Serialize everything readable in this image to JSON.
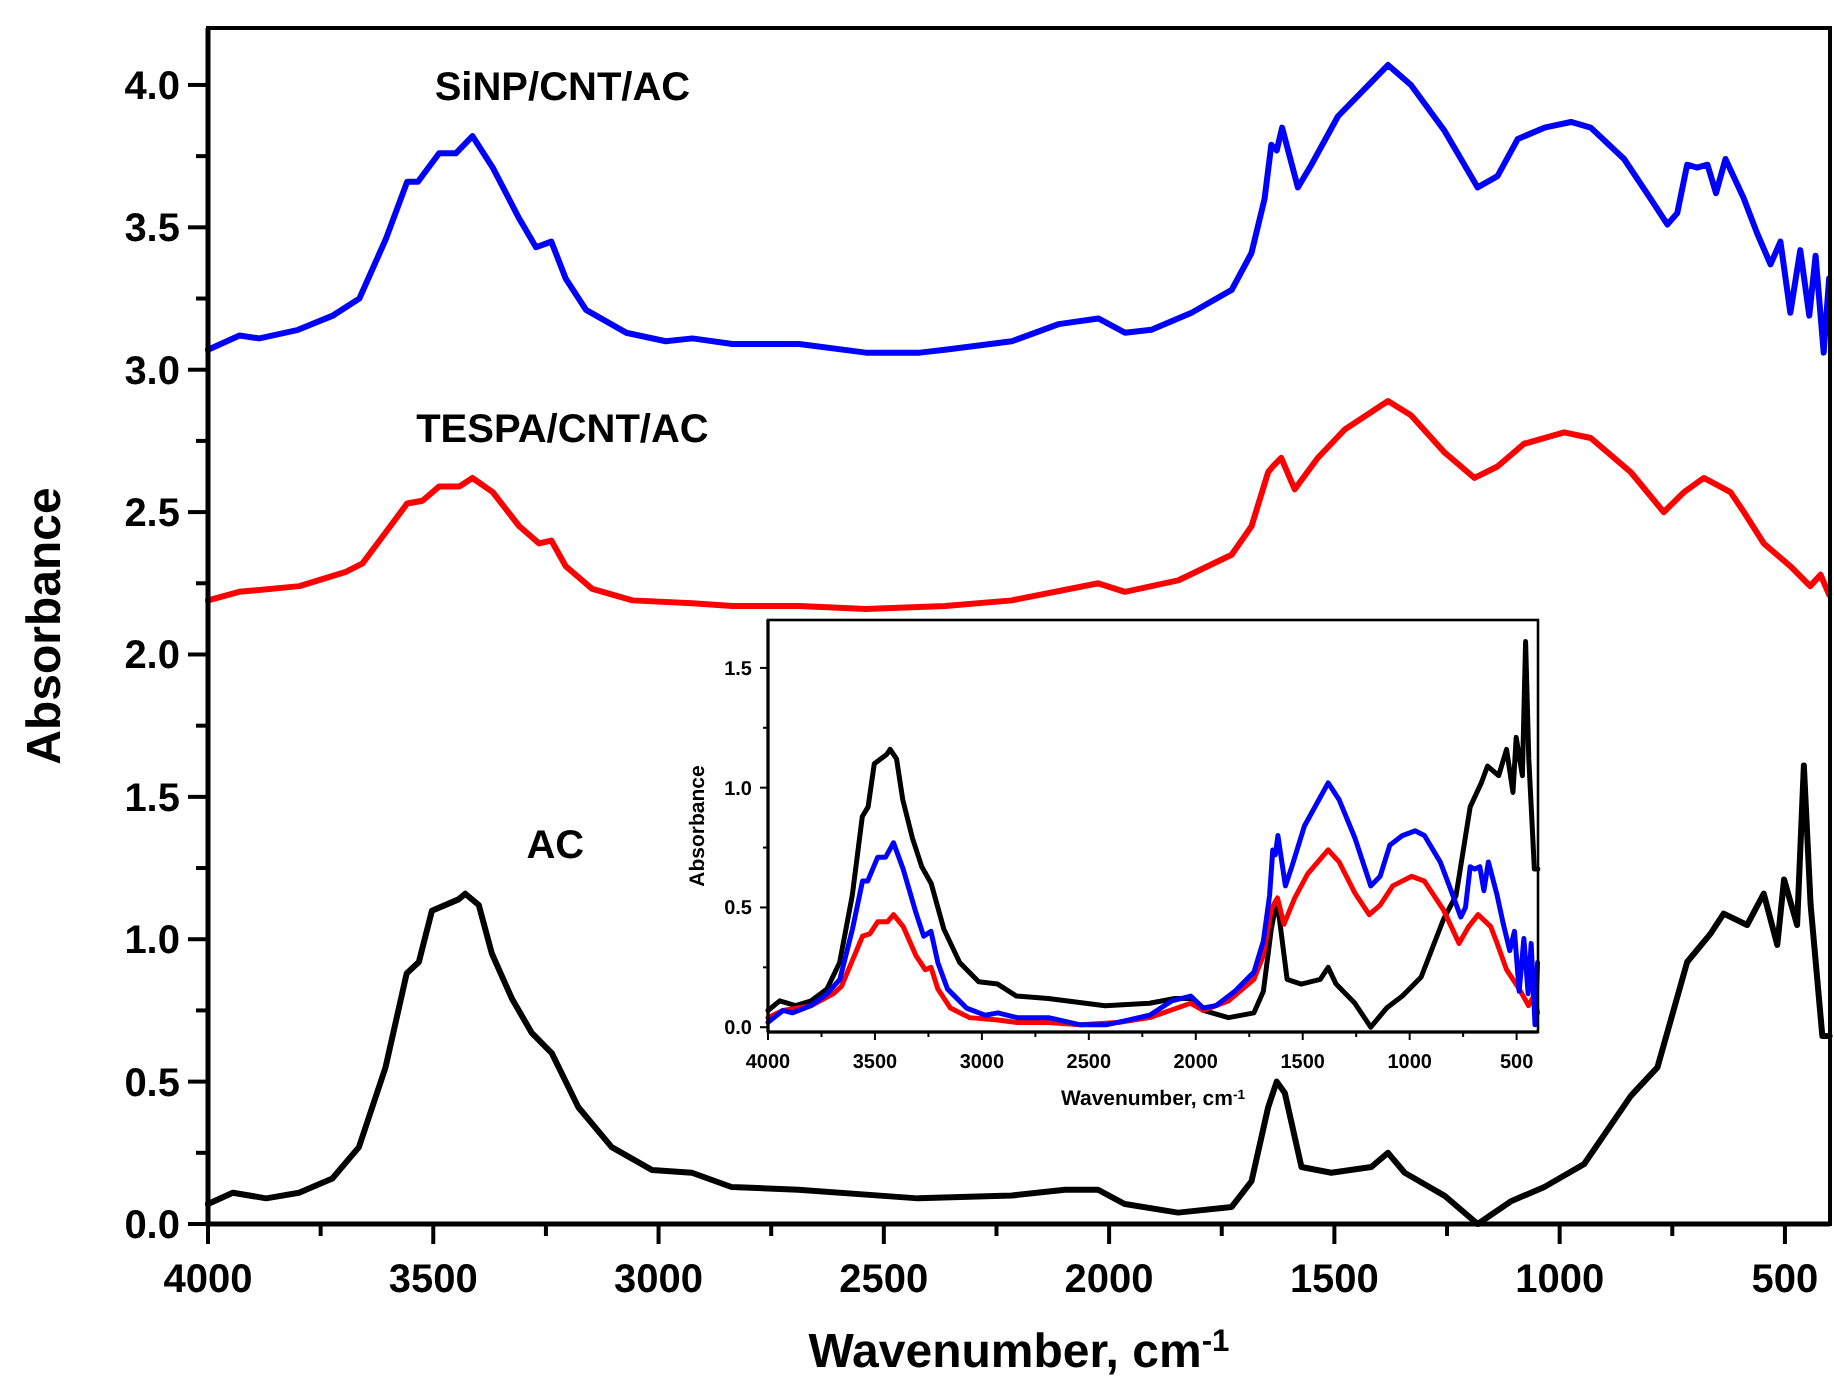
{
  "chart_data": [
    {
      "type": "line",
      "xlabel": "Wavenumber, cm$^{-1}$",
      "ylabel": "Absorbance",
      "xlim": [
        4000,
        400
      ],
      "ylim": [
        0,
        4.2
      ],
      "xticks": [
        4000,
        {
          "value": 3750,
          "label": null
        },
        3500,
        {
          "value": 3250,
          "label": null
        },
        3000,
        {
          "value": 2750,
          "label": null
        },
        2500,
        {
          "value": 2250,
          "label": null
        },
        2000,
        {
          "value": 1750,
          "label": null
        },
        1500,
        {
          "value": 1250,
          "label": null
        },
        1000,
        {
          "value": 750,
          "label": null
        },
        500
      ],
      "yticks": [
        {
          "value": 0,
          "label": "0.0"
        },
        {
          "value": 0.25,
          "label": null
        },
        {
          "value": 0.5,
          "label": "0.5"
        },
        {
          "value": 0.75,
          "label": null
        },
        {
          "value": 1,
          "label": "1.0"
        },
        {
          "value": 1.25,
          "label": null
        },
        {
          "value": 1.5,
          "label": "1.5"
        },
        {
          "value": 1.75,
          "label": null
        },
        {
          "value": 2,
          "label": "2.0"
        },
        {
          "value": 2.25,
          "label": null
        },
        {
          "value": 2.5,
          "label": "2.5"
        },
        {
          "value": 2.75,
          "label": null
        },
        {
          "value": 3,
          "label": "3.0"
        },
        {
          "value": 3.25,
          "label": null
        },
        {
          "value": 3.5,
          "label": "3.5"
        },
        {
          "value": 3.75,
          "label": null
        },
        {
          "value": 4,
          "label": "4.0"
        }
      ],
      "series": [
        {
          "name": "SiNP/CNT/AC",
          "color": "#0000ff",
          "x": [
            4000,
            3930,
            3886,
            3800,
            3723,
            3664,
            3605,
            3558,
            3534,
            3487,
            3450,
            3413,
            3368,
            3309,
            3272,
            3238,
            3206,
            3161,
            3072,
            2984,
            2925,
            2836,
            2688,
            2540,
            2420,
            2364,
            2216,
            2112,
            2024,
            1965,
            1906,
            1817,
            1728,
            1684,
            1655,
            1640,
            1628,
            1616,
            1581,
            1551,
            1492,
            1418,
            1381,
            1330,
            1256,
            1182,
            1138,
            1093,
            1034,
            975,
            931,
            857,
            798,
            761,
            739,
            717,
            695,
            672,
            653,
            632,
            591,
            562,
            532,
            510,
            488,
            466,
            446,
            432,
            414,
            402
          ],
          "values": [
            3.07,
            3.12,
            3.11,
            3.14,
            3.19,
            3.25,
            3.46,
            3.66,
            3.66,
            3.76,
            3.76,
            3.82,
            3.71,
            3.53,
            3.43,
            3.45,
            3.32,
            3.21,
            3.13,
            3.1,
            3.11,
            3.09,
            3.09,
            3.06,
            3.06,
            3.07,
            3.1,
            3.16,
            3.18,
            3.13,
            3.14,
            3.2,
            3.28,
            3.41,
            3.6,
            3.79,
            3.77,
            3.85,
            3.64,
            3.72,
            3.89,
            4.01,
            4.07,
            4.0,
            3.84,
            3.64,
            3.68,
            3.81,
            3.85,
            3.87,
            3.85,
            3.74,
            3.6,
            3.51,
            3.55,
            3.72,
            3.71,
            3.72,
            3.62,
            3.74,
            3.6,
            3.48,
            3.37,
            3.45,
            3.2,
            3.42,
            3.19,
            3.4,
            3.06,
            3.32
          ]
        },
        {
          "name": "TESPA/CNT/AC",
          "color": "#ff0000",
          "x": [
            4000,
            3931,
            3797,
            3694,
            3657,
            3605,
            3558,
            3524,
            3487,
            3442,
            3413,
            3368,
            3309,
            3265,
            3238,
            3206,
            3147,
            3058,
            2925,
            2836,
            2688,
            2540,
            2364,
            2216,
            2024,
            1965,
            1847,
            1728,
            1684,
            1647,
            1637,
            1618,
            1588,
            1537,
            1477,
            1381,
            1330,
            1256,
            1189,
            1138,
            1079,
            990,
            931,
            842,
            769,
            724,
            680,
            621,
            591,
            547,
            488,
            444,
            421,
            402
          ],
          "values": [
            2.19,
            2.22,
            2.24,
            2.29,
            2.32,
            2.43,
            2.53,
            2.54,
            2.59,
            2.59,
            2.62,
            2.57,
            2.45,
            2.39,
            2.4,
            2.31,
            2.23,
            2.19,
            2.18,
            2.17,
            2.17,
            2.16,
            2.17,
            2.19,
            2.25,
            2.22,
            2.26,
            2.35,
            2.45,
            2.64,
            2.66,
            2.69,
            2.58,
            2.69,
            2.79,
            2.89,
            2.84,
            2.71,
            2.62,
            2.66,
            2.74,
            2.78,
            2.76,
            2.64,
            2.5,
            2.57,
            2.62,
            2.57,
            2.5,
            2.39,
            2.31,
            2.24,
            2.28,
            2.21
          ]
        },
        {
          "name": "AC",
          "color": "#000000",
          "x": [
            4000,
            3945,
            3871,
            3798,
            3724,
            3665,
            3606,
            3559,
            3532,
            3503,
            3444,
            3429,
            3399,
            3370,
            3325,
            3281,
            3237,
            3178,
            3104,
            3015,
            2926,
            2838,
            2690,
            2424,
            2216,
            2098,
            2024,
            1965,
            1847,
            1728,
            1684,
            1647,
            1628,
            1610,
            1573,
            1507,
            1418,
            1381,
            1344,
            1256,
            1182,
            1108,
            1034,
            946,
            842,
            783,
            717,
            665,
            636,
            584,
            547,
            517,
            502,
            473,
            458,
            443,
            417,
            401
          ],
          "values": [
            0.07,
            0.11,
            0.09,
            0.11,
            0.16,
            0.27,
            0.55,
            0.88,
            0.92,
            1.1,
            1.14,
            1.16,
            1.12,
            0.95,
            0.79,
            0.67,
            0.6,
            0.41,
            0.27,
            0.19,
            0.18,
            0.13,
            0.12,
            0.09,
            0.1,
            0.12,
            0.12,
            0.07,
            0.04,
            0.06,
            0.15,
            0.41,
            0.5,
            0.46,
            0.2,
            0.18,
            0.2,
            0.25,
            0.18,
            0.1,
            0.0,
            0.08,
            0.13,
            0.21,
            0.45,
            0.55,
            0.92,
            1.02,
            1.09,
            1.05,
            1.16,
            0.98,
            1.21,
            1.05,
            1.61,
            1.12,
            0.66,
            0.66
          ]
        }
      ]
    },
    {
      "type": "line",
      "xlabel": "Wavenumber, cm$^{-1}$",
      "ylabel": "Absorbance",
      "xlim": [
        4000,
        400
      ],
      "ylim": [
        -0.02,
        1.7
      ],
      "xticks": [
        4000,
        {
          "value": 3750,
          "label": null
        },
        3500,
        {
          "value": 3250,
          "label": null
        },
        3000,
        {
          "value": 2750,
          "label": null
        },
        2500,
        {
          "value": 2250,
          "label": null
        },
        2000,
        {
          "value": 1750,
          "label": null
        },
        1500,
        {
          "value": 1250,
          "label": null
        },
        1000,
        {
          "value": 750,
          "label": null
        },
        500
      ],
      "yticks": [
        {
          "value": 0,
          "label": "0.0"
        },
        {
          "value": 0.25,
          "label": null
        },
        {
          "value": 0.5,
          "label": "0.5"
        },
        {
          "value": 0.75,
          "label": null
        },
        {
          "value": 1,
          "label": "1.0"
        },
        {
          "value": 1.25,
          "label": null
        },
        {
          "value": 1.5,
          "label": "1.5"
        }
      ],
      "series": [
        {
          "color": "#000000",
          "x": [
            4000,
            3945,
            3871,
            3798,
            3724,
            3665,
            3606,
            3559,
            3532,
            3503,
            3444,
            3429,
            3399,
            3370,
            3325,
            3281,
            3237,
            3178,
            3104,
            3015,
            2926,
            2838,
            2690,
            2424,
            2216,
            2098,
            2024,
            1965,
            1847,
            1728,
            1684,
            1647,
            1628,
            1610,
            1573,
            1507,
            1418,
            1381,
            1344,
            1256,
            1182,
            1108,
            1034,
            946,
            842,
            783,
            717,
            665,
            636,
            584,
            547,
            517,
            502,
            473,
            458,
            443,
            417,
            401
          ],
          "values": [
            0.07,
            0.11,
            0.09,
            0.11,
            0.16,
            0.27,
            0.55,
            0.88,
            0.92,
            1.1,
            1.14,
            1.16,
            1.12,
            0.95,
            0.79,
            0.67,
            0.6,
            0.41,
            0.27,
            0.19,
            0.18,
            0.13,
            0.12,
            0.09,
            0.1,
            0.12,
            0.12,
            0.07,
            0.04,
            0.06,
            0.15,
            0.41,
            0.5,
            0.46,
            0.2,
            0.18,
            0.2,
            0.25,
            0.18,
            0.1,
            0.0,
            0.08,
            0.13,
            0.21,
            0.45,
            0.55,
            0.92,
            1.02,
            1.09,
            1.05,
            1.16,
            0.98,
            1.21,
            1.05,
            1.61,
            1.12,
            0.66,
            0.66
          ]
        },
        {
          "color": "#ff0000",
          "x": [
            4000,
            3931,
            3797,
            3694,
            3657,
            3605,
            3558,
            3524,
            3487,
            3442,
            3413,
            3368,
            3309,
            3265,
            3238,
            3206,
            3147,
            3058,
            2925,
            2836,
            2688,
            2540,
            2364,
            2216,
            2024,
            1965,
            1847,
            1728,
            1684,
            1647,
            1637,
            1618,
            1588,
            1537,
            1477,
            1381,
            1330,
            1256,
            1189,
            1138,
            1079,
            990,
            931,
            842,
            769,
            724,
            680,
            621,
            591,
            547,
            488,
            444,
            421,
            402
          ],
          "values": [
            0.04,
            0.07,
            0.09,
            0.14,
            0.17,
            0.28,
            0.38,
            0.39,
            0.44,
            0.44,
            0.47,
            0.42,
            0.3,
            0.24,
            0.25,
            0.16,
            0.08,
            0.04,
            0.03,
            0.02,
            0.02,
            0.01,
            0.02,
            0.04,
            0.1,
            0.07,
            0.11,
            0.2,
            0.3,
            0.49,
            0.51,
            0.54,
            0.43,
            0.54,
            0.64,
            0.74,
            0.69,
            0.56,
            0.47,
            0.51,
            0.59,
            0.63,
            0.61,
            0.49,
            0.35,
            0.42,
            0.47,
            0.42,
            0.35,
            0.24,
            0.16,
            0.09,
            0.13,
            0.06
          ]
        },
        {
          "color": "#0000ff",
          "x": [
            4000,
            3930,
            3886,
            3800,
            3723,
            3664,
            3605,
            3558,
            3534,
            3487,
            3450,
            3413,
            3368,
            3309,
            3272,
            3238,
            3206,
            3161,
            3072,
            2984,
            2925,
            2836,
            2688,
            2540,
            2420,
            2364,
            2216,
            2112,
            2024,
            1965,
            1906,
            1817,
            1728,
            1684,
            1655,
            1640,
            1628,
            1616,
            1581,
            1551,
            1492,
            1418,
            1381,
            1330,
            1256,
            1182,
            1138,
            1093,
            1034,
            975,
            931,
            857,
            798,
            761,
            739,
            717,
            695,
            672,
            653,
            632,
            591,
            562,
            532,
            510,
            488,
            466,
            446,
            432,
            414,
            402
          ],
          "values": [
            0.02,
            0.07,
            0.06,
            0.09,
            0.14,
            0.2,
            0.41,
            0.61,
            0.61,
            0.71,
            0.71,
            0.77,
            0.66,
            0.48,
            0.38,
            0.4,
            0.27,
            0.16,
            0.08,
            0.05,
            0.06,
            0.04,
            0.04,
            0.01,
            0.01,
            0.02,
            0.05,
            0.11,
            0.13,
            0.08,
            0.09,
            0.15,
            0.23,
            0.36,
            0.55,
            0.74,
            0.72,
            0.8,
            0.59,
            0.67,
            0.84,
            0.96,
            1.02,
            0.95,
            0.79,
            0.59,
            0.63,
            0.76,
            0.8,
            0.82,
            0.8,
            0.69,
            0.55,
            0.46,
            0.5,
            0.67,
            0.66,
            0.67,
            0.57,
            0.69,
            0.55,
            0.43,
            0.32,
            0.4,
            0.15,
            0.37,
            0.14,
            0.35,
            0.01,
            0.27
          ]
        }
      ]
    }
  ]
}
